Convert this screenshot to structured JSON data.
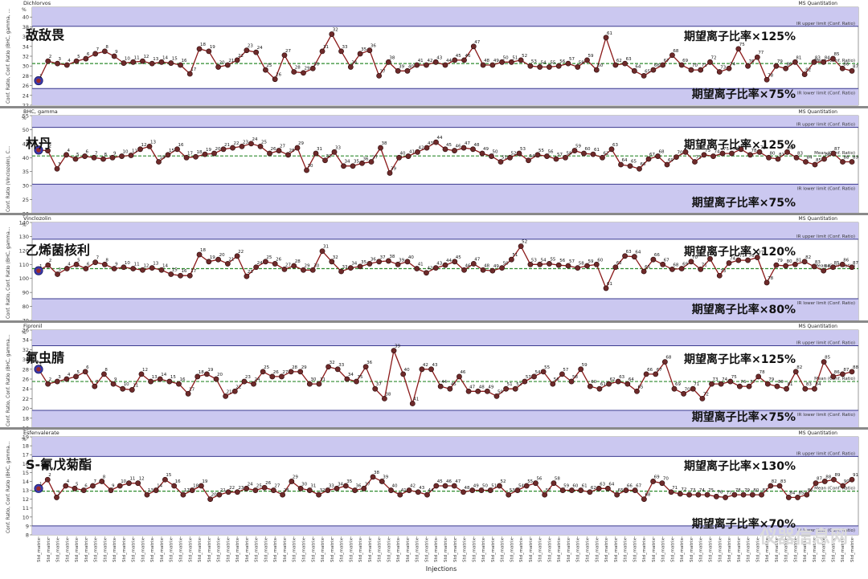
{
  "x_axis_title": "Injections",
  "x_tick_label": "Std_matrix",
  "y_unit": "%",
  "corner_label": "MS Quantitation",
  "line_labels": {
    "upper": "IR upper limit (Conf. Ratio)",
    "mean": "Mean (Conf. Ratio)",
    "lower": "IR lower limit (Conf. Ratio)"
  },
  "colors": {
    "band": "#cbc8f0",
    "series_line": "#8b1a1a",
    "marker": "#6e2a2a",
    "mean_line": "#2e8b2e",
    "limit_line": "#3b3b8f",
    "first_marker": "#3a3ab0"
  },
  "watermark": "仪器信息网",
  "chart_data": [
    {
      "type": "line",
      "compound": "Dichlorvos",
      "name_cn": "敌敌畏",
      "ylabel": "Conf. Ratio, Conf. Ratio (BHC, gamma, ...",
      "ylim": [
        22,
        42
      ],
      "yticks": [
        22,
        24,
        26,
        28,
        30,
        32,
        34,
        36,
        38,
        40
      ],
      "mean": 30.5,
      "upper": 38.1,
      "lower": 25.4,
      "upper_note": "期望离子比率×125%",
      "lower_note": "期望离子比率×75%",
      "first_value": 27.0,
      "labels_every": 1,
      "values": [
        27.0,
        31.0,
        30.5,
        30.2,
        31.0,
        31.5,
        32.5,
        33.0,
        32.0,
        30.6,
        30.8,
        31.0,
        30.5,
        30.8,
        30.6,
        30.2,
        28.4,
        33.5,
        33.0,
        29.8,
        30.2,
        31.2,
        33.2,
        32.8,
        29.2,
        27.3,
        32.2,
        28.8,
        28.6,
        29.5,
        33.0,
        36.5,
        33.0,
        29.8,
        32.5,
        33.2,
        28.0,
        30.8,
        29.0,
        29.0,
        30.2,
        30.2,
        30.8,
        30.2,
        31.2,
        31.2,
        34.0,
        30.2,
        30.2,
        30.8,
        30.8,
        31.2,
        30.0,
        29.8,
        29.8,
        30.0,
        30.5,
        29.8,
        31.2,
        29.2,
        35.8,
        30.2,
        30.5,
        29.0,
        28.0,
        29.2,
        30.2,
        32.2,
        30.2,
        29.2,
        29.2,
        30.8,
        28.8,
        29.5,
        33.5,
        30.0,
        31.8,
        27.2,
        30.0,
        29.5,
        30.8,
        28.3,
        30.8,
        30.8,
        31.5,
        29.5,
        29.0
      ]
    },
    {
      "type": "line",
      "compound": "BHC, gamma",
      "name_cn": "林丹",
      "ylabel": "Conf. Ratio (Vinclozolin), C...",
      "ylim": [
        20,
        55
      ],
      "yticks": [
        20,
        25,
        30,
        35,
        40,
        45,
        50,
        55
      ],
      "mean": 40.6,
      "upper": 50.8,
      "lower": 30.5,
      "upper_note": "期望离子比率×125%",
      "lower_note": "期望离子比率×75%",
      "first_value": 42.7,
      "labels_every": 1,
      "values": [
        42.7,
        42.5,
        36.0,
        41.0,
        39.5,
        40.5,
        40.0,
        39.5,
        40.0,
        40.5,
        40.8,
        43.0,
        44.0,
        38.5,
        41.0,
        43.0,
        40.0,
        40.3,
        41.2,
        41.5,
        43.0,
        43.5,
        44.0,
        45.0,
        44.0,
        41.5,
        42.5,
        41.0,
        43.5,
        35.5,
        41.5,
        39.0,
        42.0,
        37.0,
        37.0,
        38.0,
        38.5,
        43.5,
        34.5,
        40.0,
        40.5,
        42.0,
        43.5,
        45.5,
        43.0,
        42.5,
        43.5,
        43.0,
        41.5,
        40.5,
        38.5,
        40.0,
        41.5,
        39.0,
        41.0,
        40.5,
        39.5,
        40.0,
        42.5,
        41.5,
        41.2,
        40.0,
        43.0,
        37.5,
        37.0,
        36.0,
        39.5,
        40.5,
        37.5,
        40.2,
        42.0,
        38.5,
        41.0,
        40.5,
        41.5,
        41.5,
        43.0,
        41.0,
        42.0,
        40.0,
        39.5,
        42.0,
        40.0,
        38.5,
        37.5,
        39.5,
        41.5,
        38.5,
        38.5
      ]
    },
    {
      "type": "line",
      "compound": "Vinclozolin",
      "name_cn": "乙烯菌核利",
      "ylabel": "Conf. Ratio, Conf. Ratio (BHC, gamma...",
      "ylim": [
        70,
        140
      ],
      "yticks": [
        70,
        80,
        90,
        100,
        110,
        120,
        130,
        140
      ],
      "mean": 107.0,
      "upper": 128.0,
      "lower": 85.5,
      "upper_note": "期望离子比率×120%",
      "lower_note": "期望离子比率×80%",
      "first_value": 105.5,
      "labels_every": 1,
      "values": [
        105.5,
        109.5,
        103.0,
        107.0,
        110.0,
        107.0,
        111.5,
        110.0,
        107.0,
        108.0,
        107.0,
        106.0,
        107.5,
        106.0,
        103.0,
        102.0,
        102.0,
        117.0,
        112.0,
        113.5,
        110.5,
        116.0,
        101.5,
        108.0,
        112.0,
        110.5,
        106.5,
        109.0,
        106.0,
        106.0,
        119.5,
        112.0,
        105.0,
        107.5,
        108.5,
        110.5,
        112.0,
        112.5,
        110.0,
        112.0,
        107.0,
        104.0,
        107.5,
        109.5,
        112.0,
        106.0,
        110.5,
        106.0,
        105.5,
        107.5,
        113.5,
        123.0,
        110.0,
        110.0,
        110.5,
        109.5,
        109.0,
        107.5,
        109.0,
        110.0,
        93.0,
        108.0,
        116.0,
        115.5,
        105.0,
        113.5,
        110.0,
        106.5,
        107.0,
        112.0,
        106.5,
        114.0,
        102.0,
        111.0,
        113.0,
        113.0,
        115.0,
        97.0,
        109.5,
        109.0,
        110.0,
        112.0,
        108.5,
        105.5,
        108.0,
        110.0,
        108.0
      ]
    },
    {
      "type": "line",
      "compound": "Fipronil",
      "name_cn": "氟虫腈",
      "ylabel": "Conf. Ratio, Conf. Ratio (BHC, gamma...",
      "ylim": [
        16,
        36
      ],
      "yticks": [
        16,
        18,
        20,
        22,
        24,
        26,
        28,
        30,
        32,
        34,
        36
      ],
      "mean": 25.5,
      "upper": 32.8,
      "lower": 19.6,
      "upper_note": "期望离子比率×125%",
      "lower_note": "期望离子比率×75%",
      "first_value": 28.0,
      "labels_every": 1,
      "values": [
        28.0,
        25.0,
        25.5,
        26.0,
        26.5,
        27.5,
        24.5,
        27.0,
        25.0,
        24.0,
        23.8,
        27.0,
        25.5,
        26.0,
        25.5,
        25.0,
        23.0,
        26.5,
        27.0,
        26.0,
        22.5,
        23.5,
        25.5,
        25.0,
        27.5,
        26.5,
        26.5,
        27.5,
        27.5,
        25.0,
        25.0,
        28.5,
        28.0,
        26.0,
        25.5,
        28.5,
        24.0,
        22.0,
        31.8,
        27.0,
        21.0,
        28.0,
        28.0,
        24.5,
        24.0,
        26.5,
        23.5,
        23.5,
        23.5,
        22.5,
        24.0,
        24.0,
        25.5,
        26.5,
        27.5,
        25.0,
        27.0,
        25.5,
        28.0,
        24.5,
        24.0,
        25.0,
        25.5,
        25.0,
        23.5,
        27.0,
        27.0,
        29.5,
        24.0,
        23.0,
        24.0,
        22.0,
        25.0,
        25.0,
        25.5,
        24.5,
        24.5,
        26.5,
        25.0,
        24.5,
        24.0,
        27.5,
        24.0,
        24.0,
        29.5,
        26.5,
        27.0,
        27.5
      ]
    },
    {
      "type": "line",
      "compound": "Esfenvalerate",
      "name_cn": "S-氰戊菊酯",
      "ylabel": "Conf. Ratio, Conf. Ratio (BHC, gamma...",
      "ylim": [
        8,
        19
      ],
      "yticks": [
        8,
        9,
        10,
        11,
        12,
        13,
        14,
        15,
        16,
        17,
        18,
        19
      ],
      "mean": 12.9,
      "upper": 16.8,
      "lower": 9.0,
      "upper_note": "期望离子比率×130%",
      "lower_note": "期望离子比率×70%",
      "first_value": 13.2,
      "labels_every": 1,
      "values": [
        13.2,
        14.2,
        12.2,
        13.5,
        13.2,
        13.0,
        13.5,
        14.0,
        13.0,
        13.5,
        13.8,
        13.8,
        12.5,
        13.0,
        14.2,
        13.5,
        12.5,
        13.0,
        13.5,
        12.0,
        12.5,
        12.8,
        12.8,
        13.2,
        13.0,
        13.3,
        13.0,
        12.5,
        14.0,
        13.2,
        13.0,
        12.5,
        13.0,
        13.2,
        13.5,
        13.0,
        13.2,
        14.5,
        14.0,
        13.0,
        12.5,
        13.0,
        12.8,
        12.5,
        13.5,
        13.5,
        13.5,
        12.8,
        13.0,
        13.0,
        13.0,
        13.5,
        12.5,
        13.0,
        13.5,
        13.8,
        12.5,
        13.8,
        13.0,
        13.0,
        13.0,
        12.8,
        13.2,
        13.2,
        12.5,
        13.0,
        13.0,
        12.0,
        14.0,
        13.8,
        12.8,
        12.6,
        12.5,
        12.5,
        12.5,
        12.3,
        12.2,
        12.5,
        12.5,
        12.5,
        12.5,
        13.5,
        13.5,
        12.2,
        12.2,
        12.5,
        13.8,
        14.0,
        14.2,
        13.5,
        14.2
      ]
    }
  ]
}
